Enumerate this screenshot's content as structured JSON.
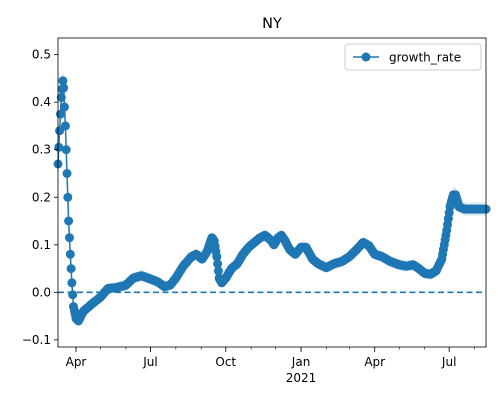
{
  "chart_data": {
    "type": "line",
    "title": "NY",
    "xlabel": "",
    "ylabel": "",
    "legend": {
      "placement": "top-right",
      "entries": [
        "growth_rate"
      ]
    },
    "grid": false,
    "x_range": [
      "2020-03-10",
      "2021-08-15"
    ],
    "ylim": [
      -0.115,
      0.535
    ],
    "x_ticks": [
      {
        "date": "2020-04-01",
        "label": "Apr"
      },
      {
        "date": "2020-07-01",
        "label": "Jul"
      },
      {
        "date": "2020-10-01",
        "label": "Oct"
      },
      {
        "date": "2021-01-01",
        "label": "Jan"
      },
      {
        "date": "2021-04-01",
        "label": "Apr"
      },
      {
        "date": "2021-07-01",
        "label": "Jul"
      }
    ],
    "x_year_label": {
      "date": "2021-01-01",
      "label": "2021"
    },
    "y_ticks": [
      {
        "value": -0.1,
        "label": "−0.1"
      },
      {
        "value": 0.0,
        "label": "0.0"
      },
      {
        "value": 0.1,
        "label": "0.1"
      },
      {
        "value": 0.2,
        "label": "0.2"
      },
      {
        "value": 0.3,
        "label": "0.3"
      },
      {
        "value": 0.4,
        "label": "0.4"
      },
      {
        "value": 0.5,
        "label": "0.5"
      }
    ],
    "reference_line": {
      "y": 0.0,
      "style": "dashed"
    },
    "series": [
      {
        "name": "growth_rate",
        "color": "#1f77b4",
        "band_color": "#1f77b4",
        "anchors": [
          [
            "2020-03-10",
            0.27
          ],
          [
            "2020-03-12",
            0.34
          ],
          [
            "2020-03-14",
            0.41
          ],
          [
            "2020-03-16",
            0.445
          ],
          [
            "2020-03-17",
            0.43
          ],
          [
            "2020-03-19",
            0.35
          ],
          [
            "2020-03-21",
            0.25
          ],
          [
            "2020-03-23",
            0.15
          ],
          [
            "2020-03-25",
            0.08
          ],
          [
            "2020-03-27",
            0.02
          ],
          [
            "2020-03-29",
            -0.03
          ],
          [
            "2020-04-01",
            -0.055
          ],
          [
            "2020-04-04",
            -0.06
          ],
          [
            "2020-04-10",
            -0.04
          ],
          [
            "2020-04-20",
            -0.025
          ],
          [
            "2020-05-01",
            -0.01
          ],
          [
            "2020-05-10",
            0.008
          ],
          [
            "2020-05-20",
            0.01
          ],
          [
            "2020-06-01",
            0.015
          ],
          [
            "2020-06-10",
            0.03
          ],
          [
            "2020-06-20",
            0.035
          ],
          [
            "2020-07-01",
            0.028
          ],
          [
            "2020-07-10",
            0.022
          ],
          [
            "2020-07-18",
            0.012
          ],
          [
            "2020-07-25",
            0.015
          ],
          [
            "2020-08-01",
            0.03
          ],
          [
            "2020-08-10",
            0.055
          ],
          [
            "2020-08-20",
            0.075
          ],
          [
            "2020-08-26",
            0.08
          ],
          [
            "2020-09-02",
            0.07
          ],
          [
            "2020-09-08",
            0.085
          ],
          [
            "2020-09-14",
            0.115
          ],
          [
            "2020-09-17",
            0.108
          ],
          [
            "2020-09-20",
            0.075
          ],
          [
            "2020-09-23",
            0.03
          ],
          [
            "2020-09-26",
            0.02
          ],
          [
            "2020-10-01",
            0.03
          ],
          [
            "2020-10-08",
            0.05
          ],
          [
            "2020-10-15",
            0.06
          ],
          [
            "2020-10-22",
            0.08
          ],
          [
            "2020-10-29",
            0.095
          ],
          [
            "2020-11-05",
            0.105
          ],
          [
            "2020-11-12",
            0.115
          ],
          [
            "2020-11-18",
            0.12
          ],
          [
            "2020-11-25",
            0.11
          ],
          [
            "2020-11-29",
            0.1
          ],
          [
            "2020-12-04",
            0.115
          ],
          [
            "2020-12-08",
            0.12
          ],
          [
            "2020-12-12",
            0.11
          ],
          [
            "2020-12-18",
            0.09
          ],
          [
            "2020-12-25",
            0.08
          ],
          [
            "2021-01-01",
            0.095
          ],
          [
            "2021-01-07",
            0.095
          ],
          [
            "2021-01-15",
            0.07
          ],
          [
            "2021-01-22",
            0.06
          ],
          [
            "2021-02-01",
            0.052
          ],
          [
            "2021-02-10",
            0.06
          ],
          [
            "2021-02-20",
            0.065
          ],
          [
            "2021-03-01",
            0.075
          ],
          [
            "2021-03-10",
            0.09
          ],
          [
            "2021-03-18",
            0.105
          ],
          [
            "2021-03-25",
            0.098
          ],
          [
            "2021-04-01",
            0.08
          ],
          [
            "2021-04-10",
            0.075
          ],
          [
            "2021-04-20",
            0.065
          ],
          [
            "2021-05-01",
            0.058
          ],
          [
            "2021-05-10",
            0.055
          ],
          [
            "2021-05-18",
            0.058
          ],
          [
            "2021-05-25",
            0.05
          ],
          [
            "2021-06-01",
            0.04
          ],
          [
            "2021-06-08",
            0.038
          ],
          [
            "2021-06-15",
            0.045
          ],
          [
            "2021-06-22",
            0.07
          ],
          [
            "2021-06-28",
            0.13
          ],
          [
            "2021-07-02",
            0.18
          ],
          [
            "2021-07-06",
            0.205
          ],
          [
            "2021-07-09",
            0.205
          ],
          [
            "2021-07-13",
            0.18
          ],
          [
            "2021-07-20",
            0.175
          ],
          [
            "2021-08-15",
            0.175
          ]
        ]
      }
    ]
  }
}
